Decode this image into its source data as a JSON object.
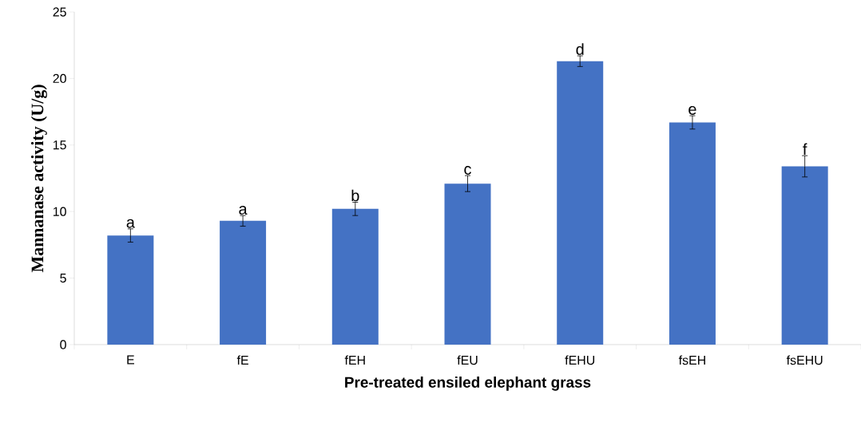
{
  "chart_data": {
    "type": "bar",
    "xlabel": "Pre-treated ensiled elephant grass",
    "ylabel": "Mannanase activity (U/g)",
    "categories": [
      "E",
      "fE",
      "fEH",
      "fEU",
      "fEHU",
      "fsEH",
      "fsEHU"
    ],
    "values": [
      8.2,
      9.3,
      10.2,
      12.1,
      21.3,
      16.7,
      13.4
    ],
    "errors": [
      0.5,
      0.4,
      0.5,
      0.6,
      0.4,
      0.5,
      0.8
    ],
    "color": "#4472c4",
    "ylim": [
      0,
      25
    ],
    "yticks": [
      0,
      5,
      10,
      15,
      20,
      25
    ],
    "grid": false,
    "annotations": [
      {
        "text": "a",
        "x": "E",
        "y": 8.7
      },
      {
        "text": "a",
        "x": "fE",
        "y": 9.7
      },
      {
        "text": "b",
        "x": "fEH",
        "y": 10.7
      },
      {
        "text": "c",
        "x": "fEU",
        "y": 12.7
      },
      {
        "text": "d",
        "x": "fEHU",
        "y": 21.7
      },
      {
        "text": "e",
        "x": "fsEH",
        "y": 17.2
      },
      {
        "text": "f",
        "x": "fsEHU",
        "y": 14.2
      }
    ]
  }
}
